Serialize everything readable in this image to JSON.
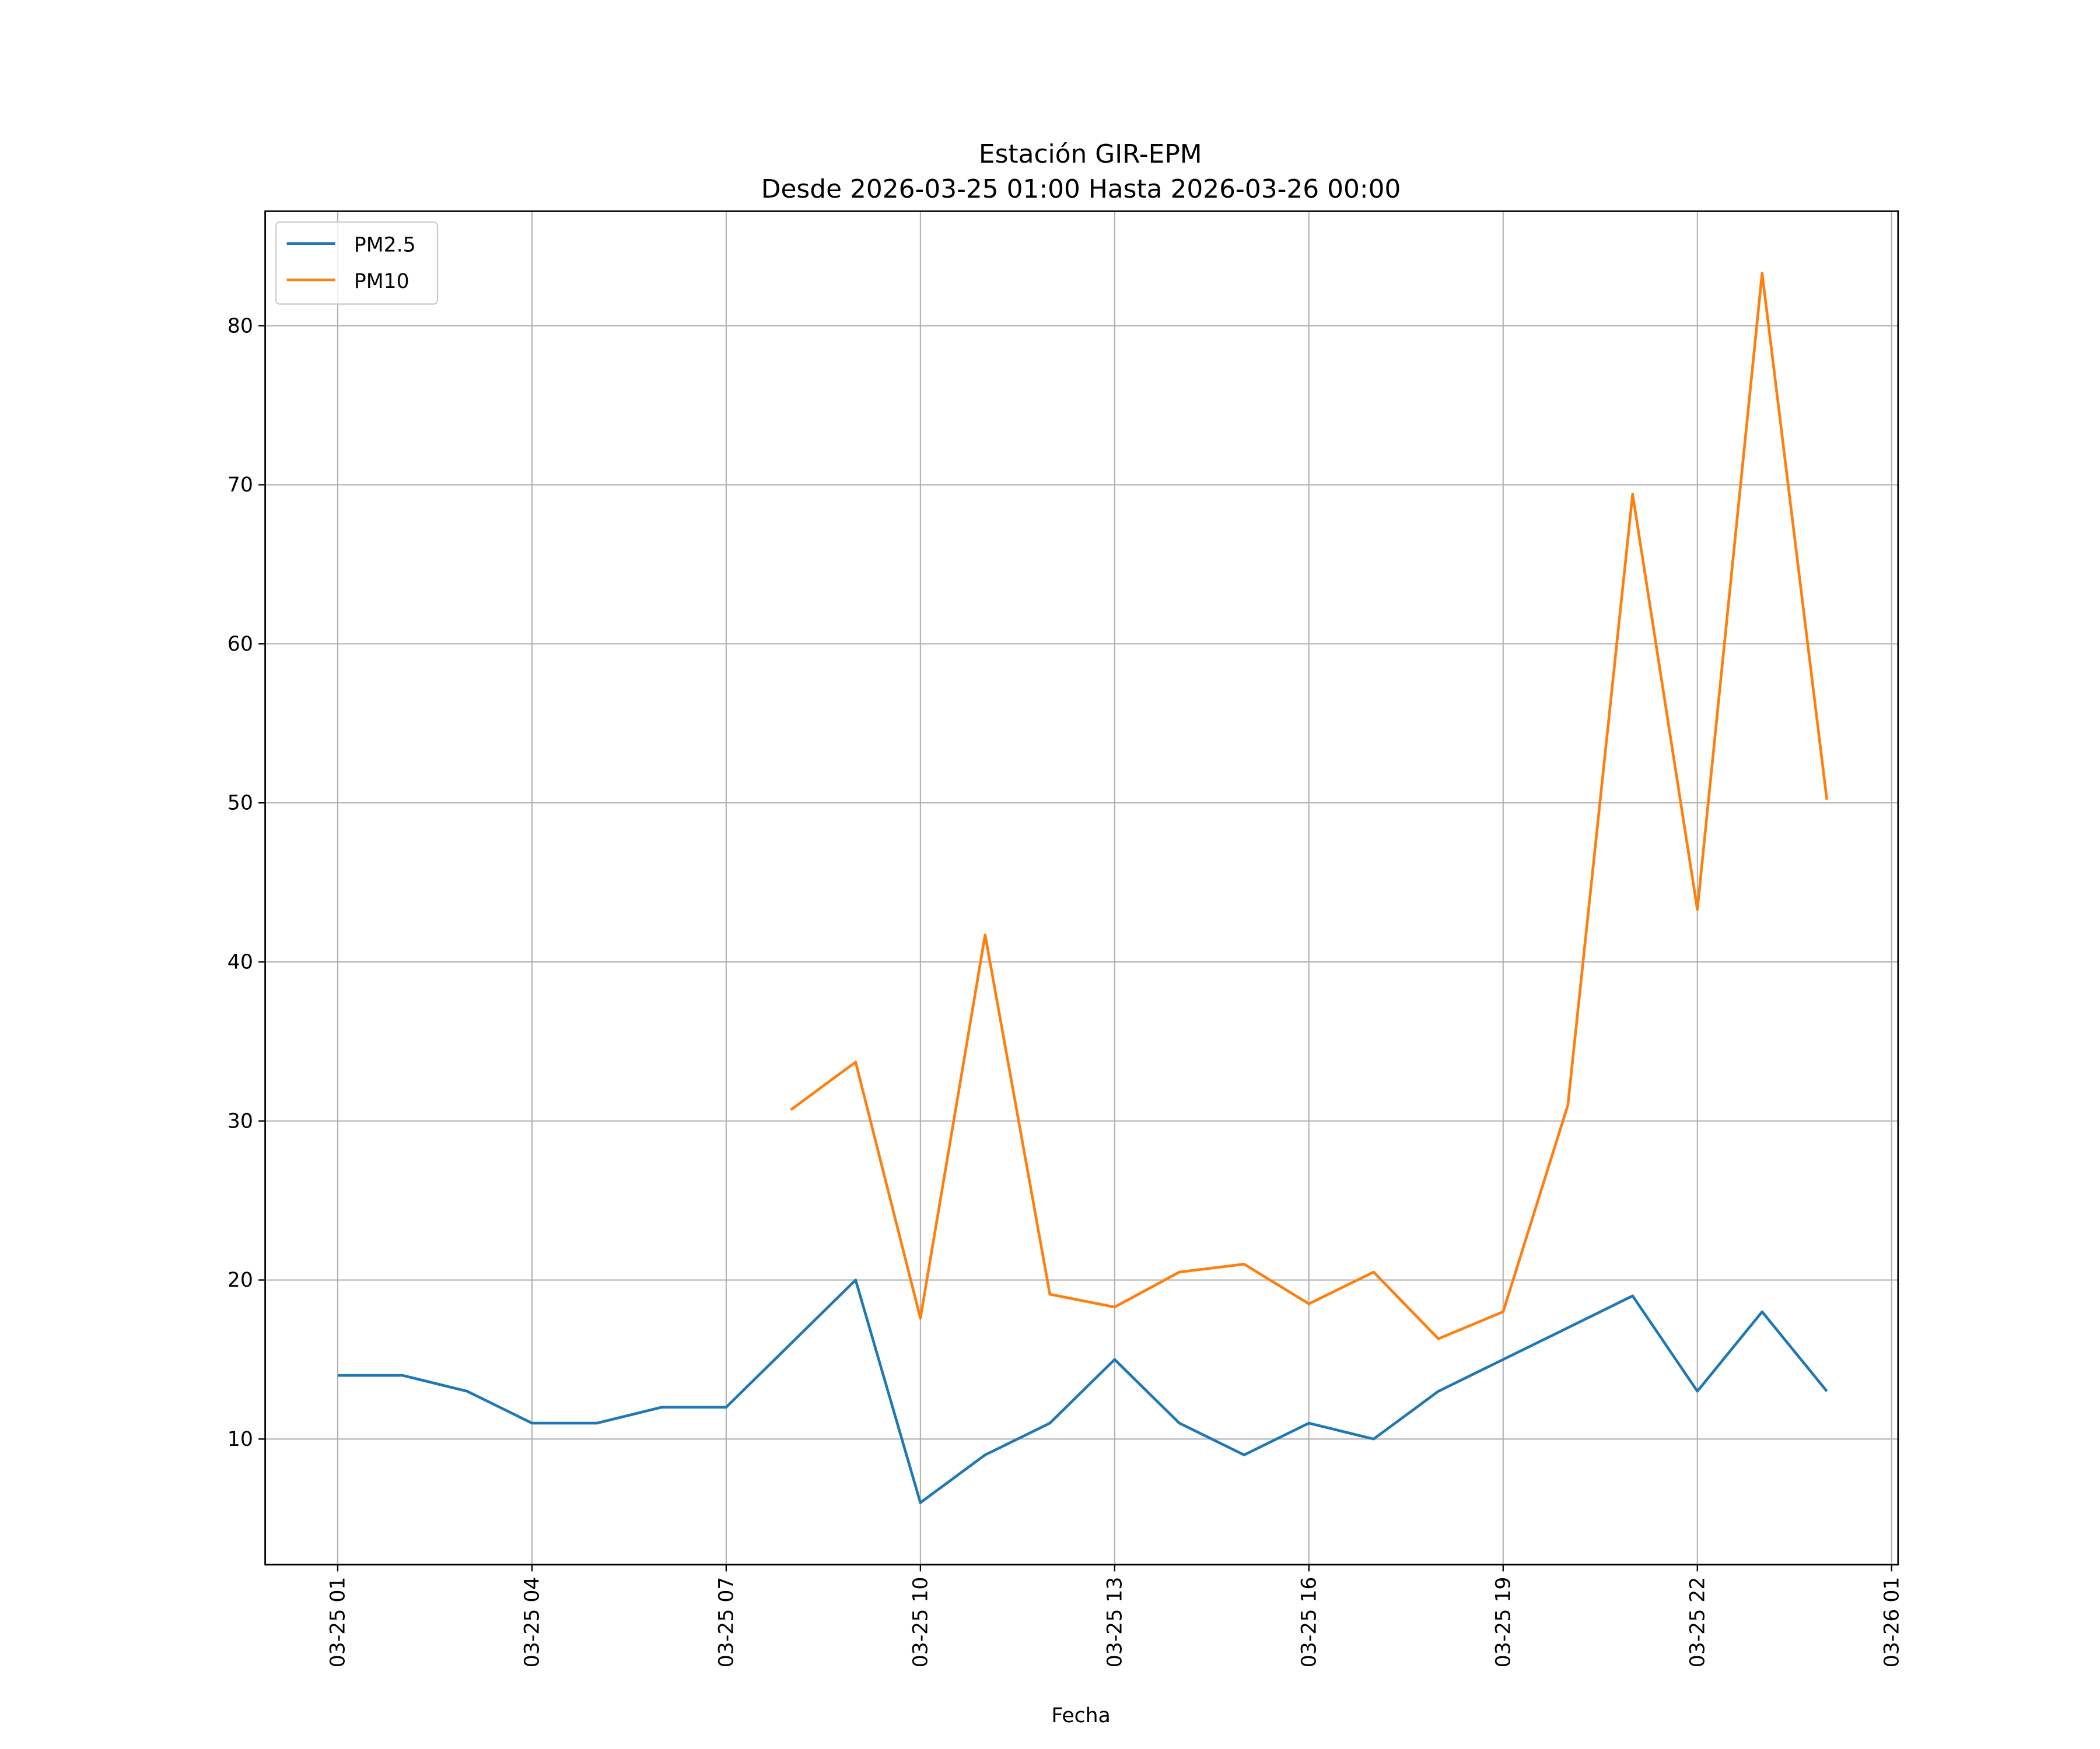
{
  "chart_data": {
    "type": "line",
    "title": "Estación GIR-EPM",
    "subtitle": "Desde 2026-03-25 01:00 Hasta 2026-03-26 00:00",
    "xlabel": "Fecha",
    "ylabel": "",
    "x_hours": [
      1,
      2,
      3,
      4,
      5,
      6,
      7,
      8,
      9,
      10,
      11,
      12,
      13,
      14,
      15,
      16,
      17,
      18,
      19,
      20,
      21,
      22,
      23,
      24
    ],
    "series": [
      {
        "name": "PM2.5",
        "color": "#1f77b4",
        "values": [
          14,
          14,
          13,
          11,
          11,
          12,
          12,
          16,
          20,
          6,
          9,
          11,
          15,
          11,
          9,
          11,
          10,
          13,
          15,
          17,
          19,
          13,
          18,
          13
        ]
      },
      {
        "name": "PM10",
        "color": "#ff7f0e",
        "values": [
          null,
          null,
          null,
          null,
          null,
          null,
          null,
          30.7,
          33.7,
          17.6,
          41.7,
          19.1,
          18.3,
          20.5,
          21.0,
          18.5,
          20.5,
          16.3,
          18.0,
          31.0,
          69.4,
          43.3,
          83.3,
          50.2
        ]
      }
    ],
    "xlim": [
      -0.12,
      25.1
    ],
    "ylim": [
      2.1,
      87.2
    ],
    "xticks": [
      {
        "value": 1,
        "label": "03-25 01"
      },
      {
        "value": 4,
        "label": "03-25 04"
      },
      {
        "value": 7,
        "label": "03-25 07"
      },
      {
        "value": 10,
        "label": "03-25 10"
      },
      {
        "value": 13,
        "label": "03-25 13"
      },
      {
        "value": 16,
        "label": "03-25 16"
      },
      {
        "value": 19,
        "label": "03-25 19"
      },
      {
        "value": 22,
        "label": "03-25 22"
      },
      {
        "value": 25,
        "label": "03-26 01"
      }
    ],
    "yticks": [
      {
        "value": 10,
        "label": "10"
      },
      {
        "value": 20,
        "label": "20"
      },
      {
        "value": 30,
        "label": "30"
      },
      {
        "value": 40,
        "label": "40"
      },
      {
        "value": 50,
        "label": "50"
      },
      {
        "value": 60,
        "label": "60"
      },
      {
        "value": 70,
        "label": "70"
      },
      {
        "value": 80,
        "label": "80"
      }
    ],
    "grid": true,
    "legend_position": "top-left"
  }
}
